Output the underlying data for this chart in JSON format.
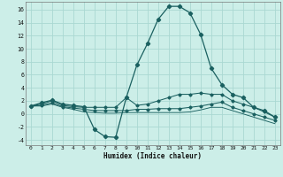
{
  "xlabel": "Humidex (Indice chaleur)",
  "background_color": "#cceee8",
  "grid_color": "#aad8d2",
  "line_color": "#1a6060",
  "xlim": [
    -0.5,
    23.5
  ],
  "ylim": [
    -4.8,
    17.2
  ],
  "xticks": [
    0,
    1,
    2,
    3,
    4,
    5,
    6,
    7,
    8,
    9,
    10,
    11,
    12,
    13,
    14,
    15,
    16,
    17,
    18,
    19,
    20,
    21,
    22,
    23
  ],
  "yticks": [
    -4,
    -2,
    0,
    2,
    4,
    6,
    8,
    10,
    12,
    14,
    16
  ],
  "series_main": {
    "x": [
      0,
      1,
      2,
      3,
      4,
      5,
      6,
      7,
      8,
      9,
      10,
      11,
      12,
      13,
      14,
      15,
      16,
      17,
      18,
      19,
      20,
      21,
      22,
      23
    ],
    "y": [
      1.2,
      1.7,
      2.1,
      1.5,
      1.3,
      1.1,
      -2.4,
      -3.5,
      -3.6,
      2.5,
      7.5,
      10.8,
      14.5,
      16.5,
      16.5,
      15.5,
      12.2,
      7.0,
      4.5,
      3.0,
      2.5,
      1.0,
      0.5,
      -0.5
    ]
  },
  "series_line2": {
    "x": [
      0,
      1,
      2,
      3,
      4,
      5,
      6,
      7,
      8,
      9,
      10,
      11,
      12,
      13,
      14,
      15,
      16,
      17,
      18,
      19,
      20,
      21,
      22,
      23
    ],
    "y": [
      1.2,
      1.5,
      2.0,
      1.3,
      1.1,
      1.0,
      1.0,
      1.0,
      1.0,
      2.5,
      1.3,
      1.5,
      2.0,
      2.5,
      3.0,
      3.0,
      3.2,
      3.0,
      3.0,
      2.0,
      1.5,
      1.0,
      0.3,
      -0.5
    ]
  },
  "series_line3": {
    "x": [
      0,
      1,
      2,
      3,
      4,
      5,
      6,
      7,
      8,
      9,
      10,
      11,
      12,
      13,
      14,
      15,
      16,
      17,
      18,
      19,
      20,
      21,
      22,
      23
    ],
    "y": [
      1.2,
      1.3,
      1.7,
      1.1,
      0.9,
      0.7,
      0.5,
      0.5,
      0.5,
      0.5,
      0.7,
      0.7,
      0.8,
      0.8,
      0.8,
      1.0,
      1.2,
      1.5,
      1.8,
      1.0,
      0.5,
      0.0,
      -0.5,
      -1.0
    ]
  },
  "series_line4": {
    "x": [
      0,
      1,
      2,
      3,
      4,
      5,
      6,
      7,
      8,
      9,
      10,
      11,
      12,
      13,
      14,
      15,
      16,
      17,
      18,
      19,
      20,
      21,
      22,
      23
    ],
    "y": [
      1.2,
      1.2,
      1.5,
      1.0,
      0.7,
      0.3,
      0.2,
      0.1,
      0.1,
      0.2,
      0.2,
      0.2,
      0.2,
      0.2,
      0.2,
      0.3,
      0.6,
      1.0,
      1.0,
      0.5,
      0.0,
      -0.5,
      -1.0,
      -1.5
    ]
  }
}
